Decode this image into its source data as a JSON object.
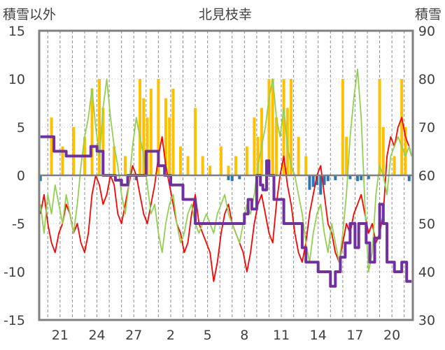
{
  "chart_data": {
    "type": "line",
    "title": "北見枝幸",
    "ylabel_left": "積雪以外",
    "ylabel_right": "積雪",
    "y_left": {
      "min": -15,
      "max": 15,
      "ticks": [
        "15",
        "10",
        "5",
        "0",
        "-5",
        "-10",
        "-15"
      ]
    },
    "y_right": {
      "min": 30,
      "max": 90,
      "ticks": [
        "90",
        "80",
        "70",
        "60",
        "50",
        "40",
        "30"
      ]
    },
    "x_ticks": [
      "21",
      "24",
      "27",
      "2",
      "5",
      "8",
      "11",
      "14",
      "17",
      "20"
    ],
    "x_tick_positions": [
      1,
      4,
      7,
      10,
      13,
      16,
      19,
      22,
      25,
      28
    ],
    "x_range": [
      -0.7,
      29.7
    ],
    "grid": {
      "horizontal": "dotted",
      "vertical": "dashed-daily"
    },
    "colors": {
      "temperature": "#ff0000",
      "other": "#92d050",
      "snow_depth": "#7030a0",
      "precip_positive": "#ffc000",
      "precip_negative": "#2e75b6"
    },
    "series": [
      {
        "axis": "left",
        "color": "#ff0000",
        "x": [
          -0.6,
          -0.3,
          0,
          0.3,
          0.6,
          0.9,
          1.2,
          1.5,
          1.8,
          2.1,
          2.4,
          2.7,
          3.0,
          3.3,
          3.6,
          3.9,
          4.2,
          4.5,
          4.8,
          5.1,
          5.4,
          5.7,
          6.0,
          6.3,
          6.6,
          6.9,
          7.2,
          7.5,
          7.8,
          8.1,
          8.4,
          8.7,
          9.0,
          9.3,
          9.6,
          9.9,
          10.2,
          10.5,
          10.8,
          11.1,
          11.4,
          11.7,
          12.0,
          12.3,
          12.6,
          12.9,
          13.2,
          13.5,
          13.8,
          14.1,
          14.4,
          14.7,
          15.0,
          15.3,
          15.6,
          15.9,
          16.2,
          16.5,
          16.8,
          17.1,
          17.4,
          17.7,
          18.0,
          18.3,
          18.6,
          18.9,
          19.2,
          19.5,
          19.8,
          20.1,
          20.4,
          20.7,
          21.0,
          21.3,
          21.6,
          21.9,
          22.2,
          22.5,
          22.8,
          23.1,
          23.4,
          23.7,
          24.0,
          24.3,
          24.6,
          24.9,
          25.2,
          25.5,
          25.8,
          26.1,
          26.4,
          26.7,
          27.0,
          27.3,
          27.6,
          27.9,
          28.2,
          28.5,
          28.8,
          29.1,
          29.4,
          29.6
        ],
        "values": [
          -4,
          -2,
          -5,
          -7,
          -8,
          -6,
          -5,
          -3,
          -4,
          -6,
          -5,
          -7,
          -8,
          -6,
          -2,
          0,
          -1,
          -3,
          -2,
          0,
          -1,
          -4,
          -5,
          -3,
          -1,
          1,
          0,
          -2,
          -4,
          -5,
          -3,
          -1,
          2,
          4,
          1,
          -1,
          -3,
          -5,
          -6,
          -8,
          -7,
          -4,
          -2,
          -5,
          -6,
          -7,
          -8,
          -11,
          -9,
          -6,
          -4,
          -3,
          -5,
          -6,
          -7,
          -8,
          -10,
          -8,
          -5,
          -3,
          -2,
          -4,
          -6,
          -7,
          -3,
          0,
          2,
          -1,
          -3,
          -6,
          -8,
          -9,
          -7,
          -4,
          -2,
          0,
          1,
          -2,
          -5,
          -6,
          -8,
          -9,
          -7,
          -5,
          -6,
          -4,
          -3,
          -2,
          -4,
          -6,
          -5,
          -7,
          -6,
          -4,
          2,
          4,
          3,
          5,
          6,
          4,
          3,
          2
        ]
      },
      {
        "axis": "left",
        "color": "#92d050",
        "x": [
          -0.6,
          -0.3,
          0,
          0.3,
          0.6,
          0.9,
          1.2,
          1.5,
          1.8,
          2.1,
          2.4,
          2.7,
          3.0,
          3.3,
          3.6,
          3.9,
          4.2,
          4.5,
          4.8,
          5.1,
          5.4,
          5.7,
          6.0,
          6.3,
          6.6,
          6.9,
          7.2,
          7.5,
          7.8,
          8.1,
          8.4,
          8.7,
          9.0,
          9.3,
          9.6,
          9.9,
          10.2,
          10.5,
          10.8,
          11.1,
          11.4,
          11.7,
          12.0,
          12.3,
          12.6,
          12.9,
          13.2,
          13.5,
          13.8,
          14.1,
          14.4,
          14.7,
          15.0,
          15.3,
          15.6,
          15.9,
          16.2,
          16.5,
          16.8,
          17.1,
          17.4,
          17.7,
          18.0,
          18.3,
          18.6,
          18.9,
          19.2,
          19.5,
          19.8,
          20.1,
          20.4,
          20.7,
          21.0,
          21.3,
          21.6,
          21.9,
          22.2,
          22.5,
          22.8,
          23.1,
          23.4,
          23.7,
          24.0,
          24.3,
          24.6,
          24.9,
          25.2,
          25.5,
          25.8,
          26.1,
          26.4,
          26.7,
          27.0,
          27.3,
          27.6,
          27.9,
          28.2,
          28.5,
          28.8,
          29.1,
          29.4,
          29.6
        ],
        "values": [
          -3,
          -6,
          -2,
          -4,
          -1,
          -3,
          -5,
          -2,
          -4,
          -6,
          -3,
          1,
          4,
          6,
          9,
          5,
          2,
          7,
          10,
          6,
          3,
          1,
          -2,
          -4,
          -1,
          3,
          6,
          4,
          2,
          -1,
          -4,
          -3,
          -6,
          -8,
          -5,
          -3,
          -2,
          -5,
          -7,
          -6,
          -4,
          -3,
          -5,
          -6,
          -5,
          -4,
          -5,
          -6,
          -4,
          -3,
          -2,
          -4,
          -5,
          -6,
          -7,
          -5,
          -3,
          -4,
          -2,
          1,
          3,
          5,
          8,
          10,
          6,
          4,
          7,
          3,
          1,
          0,
          -2,
          -4,
          -7,
          -9,
          -6,
          -4,
          -3,
          -6,
          -8,
          -5,
          -7,
          -9,
          -6,
          -2,
          4,
          8,
          11,
          6,
          -3,
          -10,
          -8,
          -2,
          1,
          0,
          -2,
          2,
          3,
          4,
          3,
          2,
          3,
          2
        ]
      },
      {
        "axis": "right",
        "color": "#7030a0",
        "x": [
          -0.6,
          0,
          0.5,
          1,
          1.5,
          2,
          2.5,
          3,
          3.5,
          4,
          4.5,
          5,
          5.5,
          6,
          6.5,
          7,
          7.5,
          8,
          8.5,
          9,
          9.5,
          10,
          11,
          12,
          13,
          14,
          14.5,
          15,
          15.5,
          16,
          16.3,
          16.6,
          17,
          17.3,
          17.5,
          17.8,
          18,
          18.4,
          18.8,
          19.2,
          19.6,
          20,
          20.3,
          20.7,
          21,
          21.4,
          21.7,
          22,
          22.3,
          22.6,
          23,
          23.4,
          23.8,
          24.2,
          24.6,
          25,
          25.3,
          25.6,
          25.9,
          26.2,
          26.6,
          27,
          27.3,
          27.6,
          27.9,
          28.2,
          28.5,
          28.8,
          29.2,
          29.6
        ],
        "values": [
          68,
          68,
          65,
          65,
          64,
          64,
          64,
          64,
          66,
          65,
          60,
          60,
          59,
          58,
          60,
          60,
          60,
          65,
          65,
          62,
          60,
          58,
          55,
          50,
          50,
          50,
          50,
          50,
          50,
          52,
          55,
          53,
          60,
          58,
          57,
          63,
          60,
          55,
          55,
          50,
          50,
          50,
          50,
          45,
          42,
          42,
          42,
          40,
          40,
          40,
          37,
          40,
          43,
          46,
          50,
          45,
          50,
          50,
          46,
          42,
          47,
          54,
          50,
          42,
          42,
          40,
          40,
          42,
          38,
          38
        ]
      }
    ],
    "bars": [
      {
        "x": 0.3,
        "value": 6,
        "sign": "positive"
      },
      {
        "x": 1.2,
        "value": 3,
        "sign": "positive"
      },
      {
        "x": 2.1,
        "value": 5,
        "sign": "positive"
      },
      {
        "x": 3.0,
        "value": 4,
        "sign": "positive"
      },
      {
        "x": 3.6,
        "value": 9,
        "sign": "positive"
      },
      {
        "x": 4.2,
        "value": 10,
        "sign": "positive"
      },
      {
        "x": 4.5,
        "value": 7,
        "sign": "positive"
      },
      {
        "x": 5.4,
        "value": 3,
        "sign": "positive"
      },
      {
        "x": 6.3,
        "value": 2,
        "sign": "positive"
      },
      {
        "x": 7.5,
        "value": 10,
        "sign": "positive"
      },
      {
        "x": 7.8,
        "value": 8,
        "sign": "positive"
      },
      {
        "x": 8.1,
        "value": 6,
        "sign": "positive"
      },
      {
        "x": 8.4,
        "value": 9,
        "sign": "positive"
      },
      {
        "x": 9.0,
        "value": 10,
        "sign": "positive"
      },
      {
        "x": 9.6,
        "value": 8,
        "sign": "positive"
      },
      {
        "x": 9.9,
        "value": 6,
        "sign": "positive"
      },
      {
        "x": 10.2,
        "value": 9,
        "sign": "positive"
      },
      {
        "x": 10.8,
        "value": 3,
        "sign": "positive"
      },
      {
        "x": 11.4,
        "value": 2,
        "sign": "positive"
      },
      {
        "x": 12.0,
        "value": 7,
        "sign": "positive"
      },
      {
        "x": 12.6,
        "value": 2,
        "sign": "positive"
      },
      {
        "x": 13.2,
        "value": 1,
        "sign": "positive"
      },
      {
        "x": 14.1,
        "value": 3,
        "sign": "positive"
      },
      {
        "x": 14.7,
        "value": 1,
        "sign": "positive"
      },
      {
        "x": 15.3,
        "value": 2,
        "sign": "positive"
      },
      {
        "x": 16.2,
        "value": 3,
        "sign": "positive"
      },
      {
        "x": 16.8,
        "value": 6,
        "sign": "positive"
      },
      {
        "x": 17.1,
        "value": 4,
        "sign": "positive"
      },
      {
        "x": 17.4,
        "value": 7,
        "sign": "positive"
      },
      {
        "x": 18.0,
        "value": 10,
        "sign": "positive"
      },
      {
        "x": 18.3,
        "value": 10,
        "sign": "positive"
      },
      {
        "x": 18.6,
        "value": 6,
        "sign": "positive"
      },
      {
        "x": 19.2,
        "value": 10,
        "sign": "positive"
      },
      {
        "x": 19.5,
        "value": 7,
        "sign": "positive"
      },
      {
        "x": 19.8,
        "value": 10,
        "sign": "positive"
      },
      {
        "x": 20.4,
        "value": 4,
        "sign": "positive"
      },
      {
        "x": 21.0,
        "value": 2,
        "sign": "positive"
      },
      {
        "x": 24.0,
        "value": 10,
        "sign": "positive"
      },
      {
        "x": 24.3,
        "value": 4,
        "sign": "positive"
      },
      {
        "x": 27.0,
        "value": 10,
        "sign": "positive"
      },
      {
        "x": 27.3,
        "value": 5,
        "sign": "positive"
      },
      {
        "x": 28.2,
        "value": 2,
        "sign": "positive"
      },
      {
        "x": 28.8,
        "value": 10,
        "sign": "positive"
      },
      {
        "x": 29.1,
        "value": 5,
        "sign": "positive"
      },
      {
        "x": -0.6,
        "value": -0.6,
        "sign": "negative"
      },
      {
        "x": 7.2,
        "value": -0.5,
        "sign": "negative"
      },
      {
        "x": 14.7,
        "value": -0.5,
        "sign": "negative"
      },
      {
        "x": 15.0,
        "value": -0.6,
        "sign": "negative"
      },
      {
        "x": 15.6,
        "value": -0.4,
        "sign": "negative"
      },
      {
        "x": 21.3,
        "value": -1.5,
        "sign": "negative"
      },
      {
        "x": 21.6,
        "value": -1.2,
        "sign": "negative"
      },
      {
        "x": 21.9,
        "value": -1.0,
        "sign": "negative"
      },
      {
        "x": 22.2,
        "value": -2.0,
        "sign": "negative"
      },
      {
        "x": 22.5,
        "value": -1.0,
        "sign": "negative"
      },
      {
        "x": 22.8,
        "value": -0.6,
        "sign": "negative"
      },
      {
        "x": 23.4,
        "value": -0.5,
        "sign": "negative"
      },
      {
        "x": 24.6,
        "value": -0.4,
        "sign": "negative"
      },
      {
        "x": 25.2,
        "value": -0.6,
        "sign": "negative"
      },
      {
        "x": 25.5,
        "value": -0.5,
        "sign": "negative"
      },
      {
        "x": 26.1,
        "value": -0.4,
        "sign": "negative"
      },
      {
        "x": 29.4,
        "value": -0.6,
        "sign": "negative"
      }
    ]
  }
}
